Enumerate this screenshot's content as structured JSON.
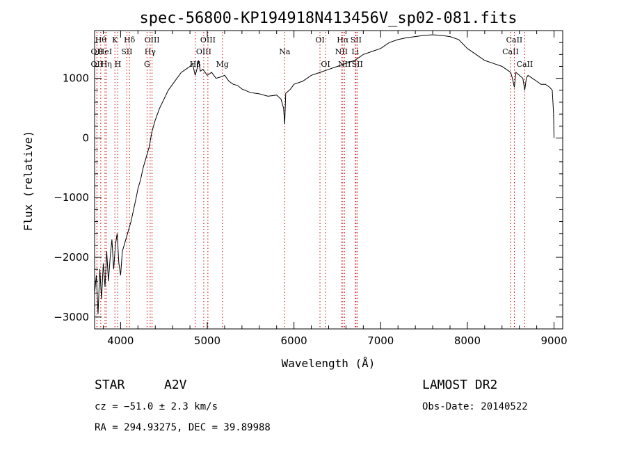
{
  "chart_data": {
    "type": "line",
    "title": "spec-56800-KP194918N413456V_sp02-081.fits",
    "xlabel": "Wavelength (Å)",
    "ylabel": "Flux (relative)",
    "xlim": [
      3700,
      9100
    ],
    "ylim": [
      -3200,
      1800
    ],
    "xticks": [
      4000,
      5000,
      6000,
      7000,
      8000,
      9000
    ],
    "yticks": [
      -3000,
      -2000,
      -1000,
      0,
      1000
    ],
    "grid": false,
    "series": [
      {
        "x": [
          3700,
          3720,
          3740,
          3760,
          3780,
          3800,
          3820,
          3840,
          3860,
          3880,
          3900,
          3920,
          3940,
          3960,
          3980,
          4000,
          4020,
          4040,
          4060,
          4080,
          4100,
          4120,
          4150,
          4180,
          4200,
          4230,
          4260,
          4300,
          4330,
          4360,
          4400,
          4450,
          4500,
          4550,
          4600,
          4650,
          4700,
          4750,
          4800,
          4830,
          4860,
          4880,
          4900,
          4920,
          4950,
          5000,
          5050,
          5100,
          5150,
          5200,
          5250,
          5300,
          5350,
          5400,
          5500,
          5600,
          5700,
          5800,
          5850,
          5880,
          5893,
          5905,
          5930,
          5960,
          6000,
          6100,
          6200,
          6300,
          6400,
          6500,
          6600,
          6700,
          6800,
          6900,
          7000,
          7100,
          7200,
          7300,
          7400,
          7500,
          7600,
          7700,
          7800,
          7900,
          8000,
          8100,
          8200,
          8300,
          8400,
          8450,
          8500,
          8520,
          8542,
          8560,
          8600,
          8640,
          8662,
          8680,
          8700,
          8750,
          8800,
          8850,
          8900,
          8950,
          8980,
          8995,
          9000
        ],
        "values": [
          -2600,
          -2300,
          -2950,
          -2200,
          -2700,
          -2100,
          -2500,
          -1900,
          -2400,
          -2000,
          -1700,
          -2200,
          -1800,
          -1600,
          -2100,
          -2300,
          -1900,
          -1800,
          -1700,
          -1600,
          -1500,
          -1400,
          -1200,
          -1000,
          -850,
          -700,
          -500,
          -300,
          -150,
          100,
          300,
          500,
          650,
          800,
          900,
          1000,
          1100,
          1150,
          1200,
          1250,
          1050,
          1150,
          1300,
          1120,
          1150,
          1050,
          1100,
          1000,
          1020,
          1050,
          950,
          900,
          880,
          820,
          760,
          740,
          700,
          720,
          650,
          500,
          230,
          750,
          780,
          820,
          900,
          950,
          1050,
          1100,
          1150,
          1200,
          1250,
          1300,
          1400,
          1450,
          1500,
          1600,
          1650,
          1680,
          1700,
          1720,
          1730,
          1720,
          1700,
          1650,
          1500,
          1400,
          1300,
          1250,
          1200,
          1150,
          1100,
          1000,
          850,
          1100,
          1050,
          1000,
          800,
          1000,
          1050,
          1000,
          950,
          900,
          900,
          850,
          800,
          400,
          0
        ]
      }
    ],
    "line_markers": [
      {
        "wavelength": 3771,
        "label": "Hθ",
        "row": 0
      },
      {
        "wavelength": 3727,
        "label": "OII",
        "row": 1
      },
      {
        "wavelength": 3727,
        "label": "OII",
        "row": 2
      },
      {
        "wavelength": 3835,
        "label": "Hη",
        "row": 2
      },
      {
        "wavelength": 3820,
        "label": "HeI",
        "row": 1
      },
      {
        "wavelength": 3934,
        "label": "K",
        "row": 0
      },
      {
        "wavelength": 3968,
        "label": "H",
        "row": 2
      },
      {
        "wavelength": 4072,
        "label": "SII",
        "row": 1
      },
      {
        "wavelength": 4102,
        "label": "Hδ",
        "row": 0
      },
      {
        "wavelength": 4363,
        "label": "OIII",
        "row": 0
      },
      {
        "wavelength": 4341,
        "label": "Hγ",
        "row": 1
      },
      {
        "wavelength": 4305,
        "label": "G",
        "row": 2
      },
      {
        "wavelength": 4861,
        "label": "Hβ",
        "row": 2
      },
      {
        "wavelength": 4959,
        "label": "OIII",
        "row": 1
      },
      {
        "wavelength": 5007,
        "label": "OIII",
        "row": 0
      },
      {
        "wavelength": 5175,
        "label": "Mg",
        "row": 2
      },
      {
        "wavelength": 5893,
        "label": "Na",
        "row": 1
      },
      {
        "wavelength": 6300,
        "label": "OI",
        "row": 0
      },
      {
        "wavelength": 6364,
        "label": "OI",
        "row": 2
      },
      {
        "wavelength": 6563,
        "label": "Hα",
        "row": 0
      },
      {
        "wavelength": 6548,
        "label": "NII",
        "row": 1
      },
      {
        "wavelength": 6583,
        "label": "NII",
        "row": 2
      },
      {
        "wavelength": 6716,
        "label": "SII",
        "row": 0
      },
      {
        "wavelength": 6707,
        "label": "Li",
        "row": 1
      },
      {
        "wavelength": 6731,
        "label": "SII",
        "row": 2
      },
      {
        "wavelength": 8498,
        "label": "CaII",
        "row": 1
      },
      {
        "wavelength": 8542,
        "label": "CaII",
        "row": 0
      },
      {
        "wavelength": 8662,
        "label": "CaII",
        "row": 2
      }
    ]
  },
  "info": {
    "object_type": "STAR",
    "subclass": "A2V",
    "survey": "LAMOST DR2",
    "cz": "cz = −51.0 ± 2.3 km/s",
    "obs_date": "Obs-Date: 20140522",
    "coords": "RA = 294.93275, DEC =  39.89988"
  }
}
